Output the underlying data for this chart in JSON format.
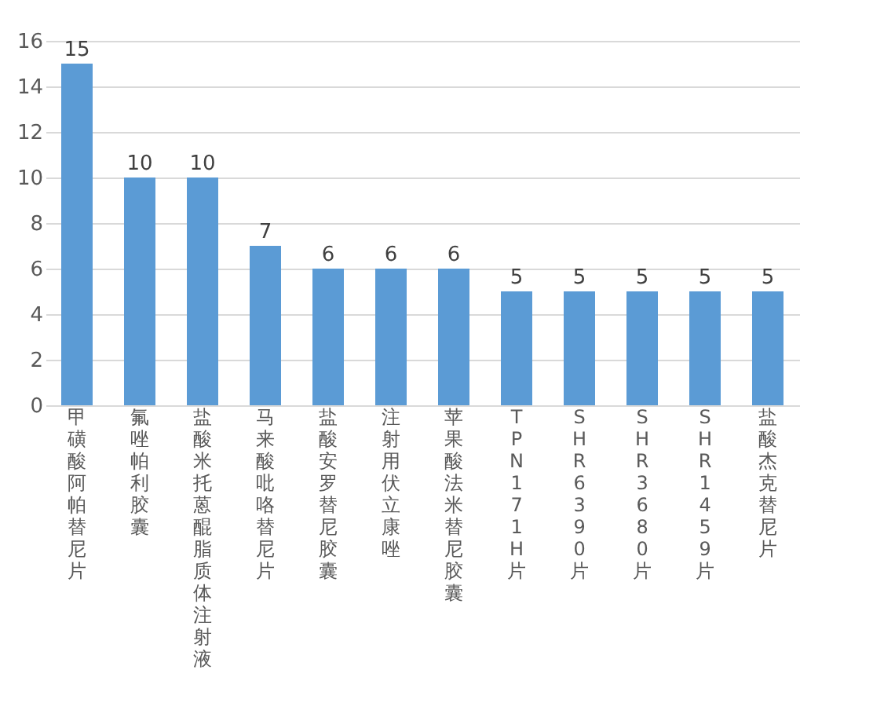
{
  "chart_data": {
    "type": "bar",
    "categories": [
      "甲磺酸阿帕替尼片",
      "氟唑帕利胶囊",
      "盐酸米托蒽醌脂质体注射液",
      "马来酸吡咯替尼片",
      "盐酸安罗替尼胶囊",
      "注射用伏立康唑",
      "苹果酸法米替尼胶囊",
      "TPN171H片",
      "SHR6390片",
      "SHR3680片",
      "SHR1459片",
      "盐酸杰克替尼片"
    ],
    "values": [
      15,
      10,
      10,
      7,
      6,
      6,
      6,
      5,
      5,
      5,
      5,
      5
    ],
    "color": "#5b9bd5",
    "ylim": [
      0,
      16
    ],
    "yticks": [
      0,
      2,
      4,
      6,
      8,
      10,
      12,
      14,
      16
    ],
    "grid": true,
    "data_labels": true
  }
}
